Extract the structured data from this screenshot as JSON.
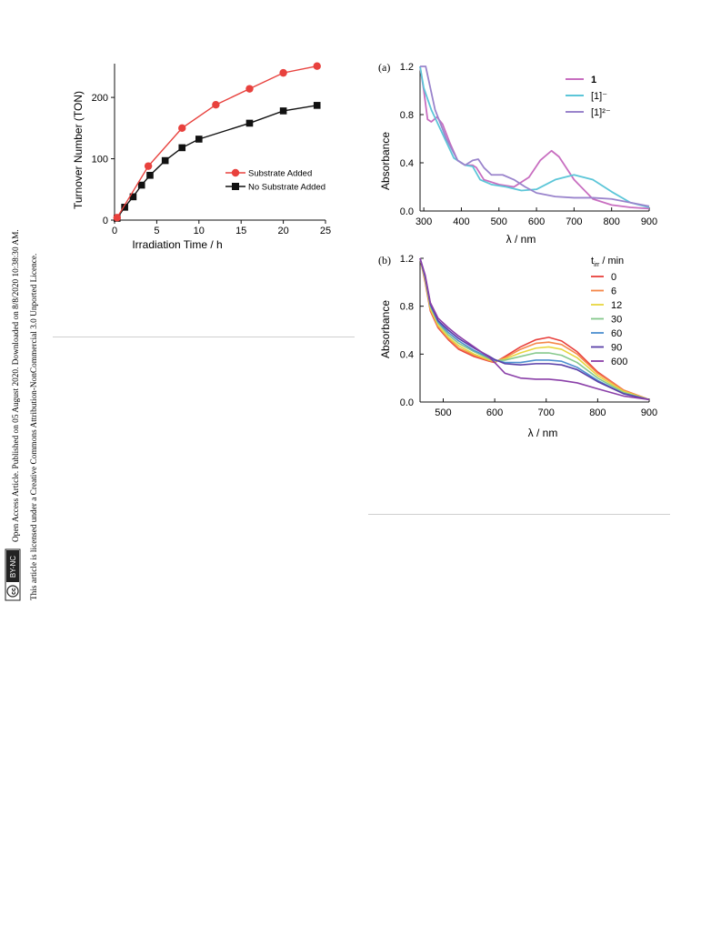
{
  "sidebar": {
    "line1": "Open Access Article. Published on 05 August 2020. Downloaded on 8/8/2020 10:38:30 AM.",
    "line2": "This article is licensed under a Creative Commons Attribution-NonCommercial 3.0 Unported Licence.",
    "badge_cc": "cc",
    "badge_text": "BY-NC"
  },
  "chart_data": [
    {
      "type": "line",
      "xlabel": "Irradiation Time / h",
      "ylabel": "Turnover Number (TON)",
      "xlim": [
        0,
        25
      ],
      "ylim": [
        0,
        255
      ],
      "xticks": [
        0,
        5,
        10,
        15,
        20,
        25
      ],
      "yticks": [
        0,
        100,
        200
      ],
      "grid": false,
      "legend_position": "center-right",
      "series": [
        {
          "name": "Substrate Added",
          "color": "#e8413d",
          "marker": "circle",
          "x": [
            0.3,
            4,
            8,
            12,
            16,
            20,
            24
          ],
          "y": [
            4,
            88,
            150,
            188,
            214,
            240,
            251
          ]
        },
        {
          "name": "No Substrate Added",
          "color": "#111111",
          "marker": "square",
          "x": [
            0.3,
            1.2,
            2.2,
            3.2,
            4.2,
            6,
            8,
            10,
            16,
            20,
            24
          ],
          "y": [
            3,
            21,
            38,
            57,
            73,
            97,
            118,
            132,
            158,
            178,
            187
          ]
        }
      ]
    },
    {
      "type": "line",
      "panel_label": "(a)",
      "xlabel": "λ / nm",
      "ylabel": "Absorbance",
      "xlim": [
        290,
        900
      ],
      "ylim": [
        0,
        1.2
      ],
      "xticks": [
        300,
        400,
        500,
        600,
        700,
        800,
        900
      ],
      "yticks": [
        0.0,
        0.4,
        0.8,
        1.2
      ],
      "ytick_labels": [
        "0.0",
        "0.4",
        "0.8",
        "1.2"
      ],
      "legend_position": "top-right",
      "series": [
        {
          "name": "1",
          "color": "#c86ec0",
          "x": [
            290,
            300,
            310,
            320,
            335,
            350,
            370,
            390,
            410,
            430,
            440,
            460,
            500,
            540,
            580,
            610,
            640,
            660,
            700,
            750,
            800,
            850,
            900
          ],
          "y": [
            1.2,
            1.0,
            0.76,
            0.74,
            0.78,
            0.72,
            0.56,
            0.42,
            0.38,
            0.38,
            0.36,
            0.26,
            0.22,
            0.2,
            0.28,
            0.42,
            0.5,
            0.45,
            0.26,
            0.1,
            0.05,
            0.03,
            0.02
          ]
        },
        {
          "name": "[1]⁻",
          "color": "#5cc6d8",
          "x": [
            290,
            300,
            320,
            350,
            380,
            410,
            430,
            450,
            480,
            520,
            560,
            600,
            650,
            700,
            750,
            800,
            850,
            900
          ],
          "y": [
            1.2,
            1.02,
            0.84,
            0.64,
            0.44,
            0.38,
            0.37,
            0.26,
            0.22,
            0.2,
            0.17,
            0.18,
            0.26,
            0.3,
            0.26,
            0.16,
            0.07,
            0.03
          ]
        },
        {
          "name": "[1]²⁻",
          "color": "#9a84cc",
          "x": [
            290,
            305,
            330,
            360,
            390,
            410,
            430,
            445,
            460,
            480,
            510,
            540,
            570,
            600,
            650,
            700,
            750,
            800,
            850,
            900
          ],
          "y": [
            1.2,
            1.2,
            0.84,
            0.6,
            0.42,
            0.38,
            0.42,
            0.43,
            0.36,
            0.3,
            0.3,
            0.26,
            0.2,
            0.15,
            0.12,
            0.11,
            0.11,
            0.1,
            0.07,
            0.04
          ]
        }
      ]
    },
    {
      "type": "line",
      "panel_label": "(b)",
      "xlabel": "λ / nm",
      "ylabel": "Absorbance",
      "xlim": [
        455,
        900
      ],
      "ylim": [
        0,
        1.2
      ],
      "xticks": [
        500,
        600,
        700,
        800,
        900
      ],
      "yticks": [
        0.0,
        0.4,
        0.8,
        1.2
      ],
      "ytick_labels": [
        "0.0",
        "0.4",
        "0.8",
        "1.2"
      ],
      "legend_title": "t",
      "legend_title_sub": "irr",
      "legend_title_rest": " / min",
      "legend_position": "top-right",
      "x": [
        455,
        465,
        475,
        490,
        510,
        530,
        560,
        590,
        600,
        620,
        650,
        680,
        705,
        730,
        760,
        800,
        850,
        900
      ],
      "series": [
        {
          "name": "0",
          "color": "#e8413d",
          "y": [
            1.2,
            1.0,
            0.76,
            0.62,
            0.52,
            0.44,
            0.38,
            0.34,
            0.33,
            0.38,
            0.46,
            0.52,
            0.54,
            0.51,
            0.42,
            0.25,
            0.1,
            0.02
          ]
        },
        {
          "name": "6",
          "color": "#f5884a",
          "y": [
            1.2,
            1.01,
            0.77,
            0.63,
            0.53,
            0.45,
            0.39,
            0.345,
            0.335,
            0.37,
            0.44,
            0.49,
            0.5,
            0.48,
            0.4,
            0.24,
            0.1,
            0.02
          ]
        },
        {
          "name": "12",
          "color": "#e8d640",
          "y": [
            1.2,
            1.02,
            0.78,
            0.64,
            0.54,
            0.47,
            0.4,
            0.35,
            0.34,
            0.36,
            0.41,
            0.45,
            0.46,
            0.44,
            0.37,
            0.22,
            0.09,
            0.02
          ]
        },
        {
          "name": "30",
          "color": "#86c98c",
          "y": [
            1.2,
            1.03,
            0.8,
            0.66,
            0.56,
            0.49,
            0.42,
            0.36,
            0.345,
            0.35,
            0.38,
            0.41,
            0.41,
            0.39,
            0.33,
            0.2,
            0.08,
            0.02
          ]
        },
        {
          "name": "60",
          "color": "#4d8fcf",
          "y": [
            1.2,
            1.04,
            0.81,
            0.67,
            0.58,
            0.51,
            0.43,
            0.37,
            0.35,
            0.33,
            0.33,
            0.35,
            0.35,
            0.34,
            0.29,
            0.18,
            0.07,
            0.02
          ]
        },
        {
          "name": "90",
          "color": "#5a3fa8",
          "y": [
            1.2,
            1.05,
            0.82,
            0.68,
            0.6,
            0.53,
            0.45,
            0.38,
            0.355,
            0.32,
            0.31,
            0.32,
            0.32,
            0.31,
            0.27,
            0.17,
            0.07,
            0.02
          ]
        },
        {
          "name": "600",
          "color": "#8a3fa8",
          "y": [
            1.2,
            1.06,
            0.83,
            0.7,
            0.62,
            0.55,
            0.46,
            0.37,
            0.33,
            0.24,
            0.2,
            0.19,
            0.19,
            0.18,
            0.16,
            0.11,
            0.05,
            0.02
          ]
        }
      ]
    }
  ]
}
